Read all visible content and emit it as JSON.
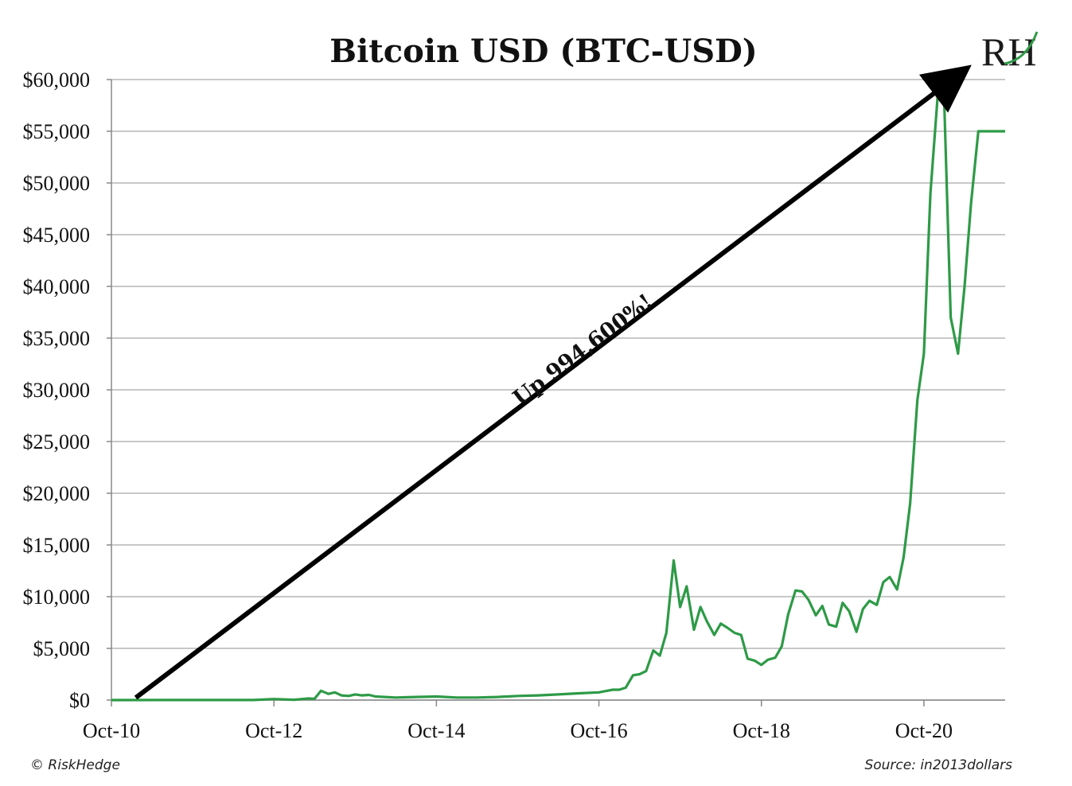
{
  "chart_data": {
    "type": "line",
    "title": "Bitcoin USD (BTC-USD)",
    "xlabel": "",
    "ylabel": "",
    "ylim": [
      0,
      60000
    ],
    "y_ticks": [
      0,
      5000,
      10000,
      15000,
      20000,
      25000,
      30000,
      35000,
      40000,
      45000,
      50000,
      55000,
      60000
    ],
    "y_tick_labels": [
      "$0",
      "$5,000",
      "$10,000",
      "$15,000",
      "$20,000",
      "$25,000",
      "$30,000",
      "$35,000",
      "$40,000",
      "$45,000",
      "$50,000",
      "$55,000",
      "$60,000"
    ],
    "x_tick_labels": [
      "Oct-10",
      "Oct-12",
      "Oct-14",
      "Oct-16",
      "Oct-18",
      "Oct-20"
    ],
    "x_ticks": [
      2010.75,
      2012.75,
      2014.75,
      2016.75,
      2018.75,
      2020.75
    ],
    "xlim": [
      2010.75,
      2021.75
    ],
    "grid": true,
    "line_color": "#2e9a47",
    "series": [
      {
        "name": "",
        "x": [
          2010.75,
          2011.5,
          2012.5,
          2012.75,
          2013.0,
          2013.17,
          2013.25,
          2013.33,
          2013.42,
          2013.5,
          2013.58,
          2013.67,
          2013.75,
          2013.83,
          2013.92,
          2014.0,
          2014.25,
          2014.5,
          2014.75,
          2015.0,
          2015.25,
          2015.5,
          2015.75,
          2016.0,
          2016.25,
          2016.5,
          2016.75,
          2016.92,
          2017.0,
          2017.08,
          2017.17,
          2017.25,
          2017.33,
          2017.42,
          2017.5,
          2017.58,
          2017.67,
          2017.75,
          2017.83,
          2017.92,
          2018.0,
          2018.08,
          2018.17,
          2018.25,
          2018.33,
          2018.42,
          2018.5,
          2018.58,
          2018.67,
          2018.75,
          2018.83,
          2018.92,
          2019.0,
          2019.08,
          2019.17,
          2019.25,
          2019.33,
          2019.42,
          2019.5,
          2019.58,
          2019.67,
          2019.75,
          2019.83,
          2019.92,
          2020.0,
          2020.08,
          2020.17,
          2020.25,
          2020.33,
          2020.42,
          2020.5,
          2020.58,
          2020.67,
          2020.75,
          2020.83,
          2020.92,
          2021.0,
          2021.08,
          2021.17,
          2021.25,
          2021.33,
          2021.42,
          2021.5,
          2021.58,
          2021.67,
          2021.75
        ],
        "values": [
          0,
          5,
          10,
          100,
          30,
          150,
          120,
          900,
          600,
          750,
          450,
          400,
          550,
          450,
          500,
          350,
          250,
          300,
          350,
          250,
          250,
          300,
          400,
          450,
          550,
          650,
          750,
          1000,
          1000,
          1200,
          2400,
          2500,
          2800,
          4800,
          4300,
          6500,
          13500,
          9000,
          11000,
          6800,
          9000,
          7600,
          6300,
          7400,
          7000,
          6500,
          6300,
          4000,
          3800,
          3400,
          3900,
          4100,
          5200,
          8300,
          10600,
          10500,
          9700,
          8200,
          9100,
          7300,
          7100,
          9400,
          8600,
          6600,
          8800,
          9600,
          9200,
          11400,
          11900,
          10700,
          13800,
          19000,
          29000,
          33500,
          49000,
          58500,
          58000,
          37000,
          33500,
          40000,
          48000,
          55000,
          55000,
          55000,
          55000,
          55000
        ]
      }
    ],
    "annotations": [
      {
        "text": "Up 994,600%!",
        "kind": "arrow",
        "from": [
          2011.05,
          0
        ],
        "to": [
          2021.15,
          60000
        ]
      }
    ],
    "logo_text": "RH",
    "copyright": "© RiskHedge",
    "source": "Source: in2013dollars"
  }
}
